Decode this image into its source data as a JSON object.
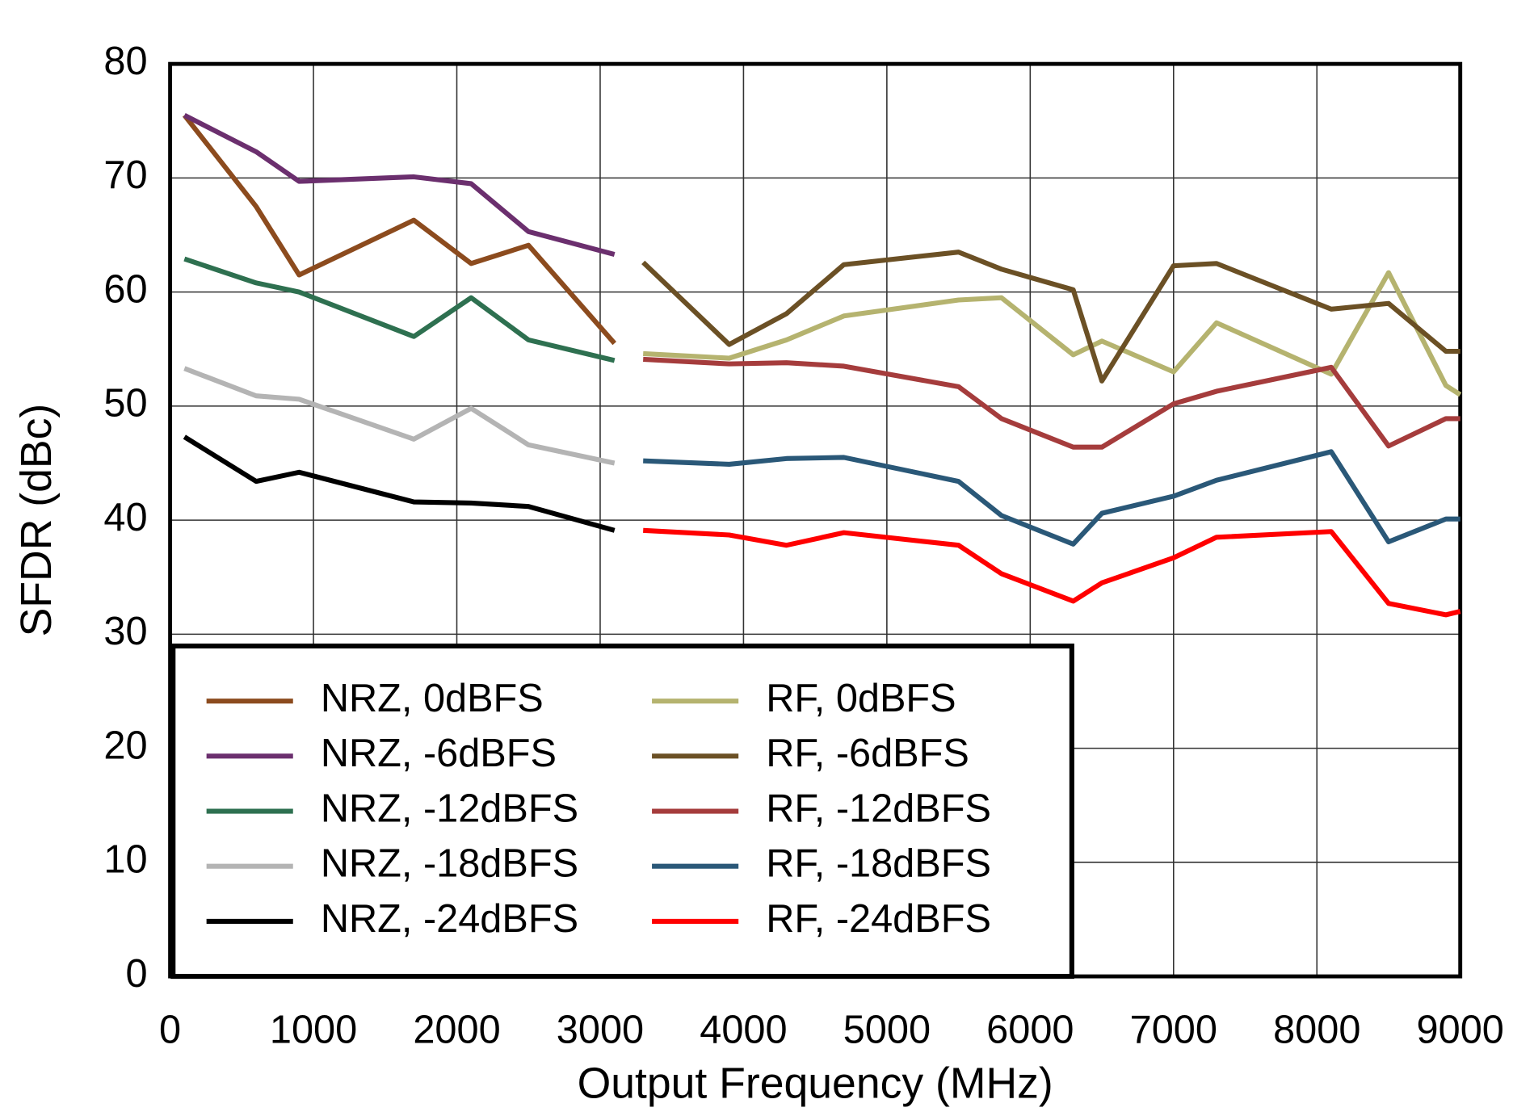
{
  "chart_data": {
    "type": "line",
    "xlabel": "Output Frequency (MHz)",
    "ylabel": "SFDR (dBc)",
    "xlim": [
      0,
      9000
    ],
    "ylim": [
      0,
      80
    ],
    "xticks": [
      0,
      1000,
      2000,
      3000,
      4000,
      5000,
      6000,
      7000,
      8000,
      9000
    ],
    "yticks": [
      0,
      10,
      20,
      30,
      40,
      50,
      60,
      70,
      80
    ],
    "grid": true,
    "legend": "lower left",
    "series": [
      {
        "name": "NRZ, 0dBFS",
        "color": "#8c4b1e",
        "x": [
          100,
          600,
          900,
          1700,
          2100,
          2500,
          3100
        ],
        "values": [
          75.5,
          67.5,
          61.5,
          66.3,
          62.5,
          64.1,
          55.5
        ]
      },
      {
        "name": "NRZ, -6dBFS",
        "color": "#6b2f6e",
        "x": [
          100,
          600,
          900,
          1700,
          2100,
          2500,
          3100
        ],
        "values": [
          75.5,
          72.3,
          69.7,
          70.1,
          69.5,
          65.3,
          63.3
        ]
      },
      {
        "name": "NRZ, -12dBFS",
        "color": "#2e7050",
        "x": [
          100,
          600,
          900,
          1700,
          2100,
          2500,
          3100
        ],
        "values": [
          62.9,
          60.8,
          60.0,
          56.1,
          59.5,
          55.8,
          54.0
        ]
      },
      {
        "name": "NRZ, -18dBFS",
        "color": "#b4b4b4",
        "x": [
          100,
          600,
          900,
          1700,
          2100,
          2500,
          3100
        ],
        "values": [
          53.3,
          50.9,
          50.6,
          47.1,
          49.8,
          46.6,
          45.0
        ]
      },
      {
        "name": "NRZ, -24dBFS",
        "color": "#000000",
        "x": [
          100,
          600,
          900,
          1700,
          2100,
          2500,
          3100
        ],
        "values": [
          47.3,
          43.4,
          44.2,
          41.6,
          41.5,
          41.2,
          39.1
        ]
      },
      {
        "name": "RF, 0dBFS",
        "color": "#b5b36f",
        "x": [
          3300,
          3900,
          4300,
          4700,
          5500,
          5800,
          6300,
          6500,
          7000,
          7300,
          8100,
          8500,
          8900,
          9000
        ],
        "values": [
          54.6,
          54.2,
          55.8,
          57.9,
          59.3,
          59.5,
          54.5,
          55.7,
          53.0,
          57.3,
          52.8,
          61.7,
          51.8,
          51.0
        ]
      },
      {
        "name": "RF, -6dBFS",
        "color": "#6b5025",
        "x": [
          3300,
          3900,
          4300,
          4700,
          5500,
          5800,
          6300,
          6500,
          7000,
          7300,
          8100,
          8500,
          8900,
          9000
        ],
        "values": [
          62.6,
          55.4,
          58.1,
          62.4,
          63.5,
          62.0,
          60.2,
          52.2,
          62.3,
          62.5,
          58.5,
          59.0,
          54.8,
          54.8
        ]
      },
      {
        "name": "RF, -12dBFS",
        "color": "#a53c3c",
        "x": [
          3300,
          3900,
          4300,
          4700,
          5500,
          5800,
          6300,
          6500,
          7000,
          7300,
          8100,
          8500,
          8900,
          9000
        ],
        "values": [
          54.1,
          53.7,
          53.8,
          53.5,
          51.7,
          48.9,
          46.4,
          46.4,
          50.2,
          51.3,
          53.4,
          46.5,
          48.9,
          48.9
        ]
      },
      {
        "name": "RF, -18dBFS",
        "color": "#2a5878",
        "x": [
          3300,
          3900,
          4300,
          4700,
          5500,
          5800,
          6300,
          6500,
          7000,
          7300,
          8100,
          8500,
          8900,
          9000
        ],
        "values": [
          45.2,
          44.9,
          45.4,
          45.5,
          43.4,
          40.4,
          37.9,
          40.6,
          42.1,
          43.5,
          46.0,
          38.1,
          40.1,
          40.1
        ]
      },
      {
        "name": "RF, -24dBFS",
        "color": "#ff0000",
        "x": [
          3300,
          3900,
          4300,
          4700,
          5500,
          5800,
          6300,
          6500,
          7000,
          7300,
          8100,
          8500,
          8900,
          9000
        ],
        "values": [
          39.1,
          38.7,
          37.8,
          38.9,
          37.8,
          35.3,
          32.9,
          34.5,
          36.7,
          38.5,
          39.0,
          32.7,
          31.7,
          32.0
        ]
      }
    ]
  }
}
